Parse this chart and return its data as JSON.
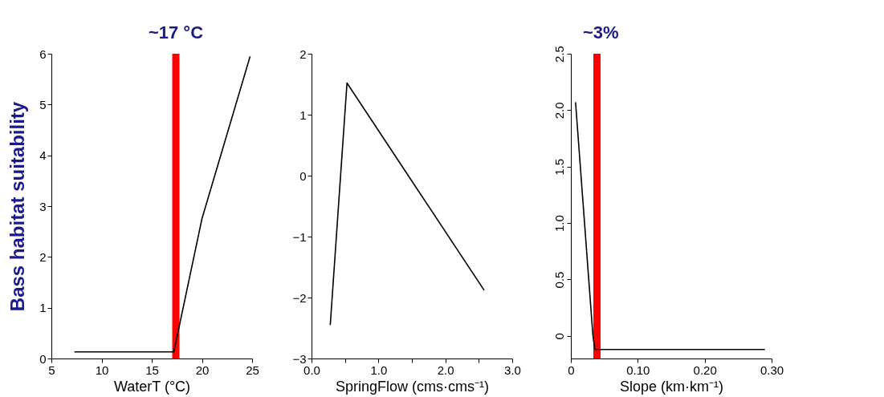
{
  "chart_data": [
    {
      "type": "line",
      "xlabel": "WaterT (°C)",
      "ylabel": "Bass habitat suitability",
      "xlim": [
        5,
        25
      ],
      "xticks": [
        5,
        10,
        15,
        20,
        25
      ],
      "ylim": [
        0,
        6
      ],
      "yticks": [
        0,
        1,
        2,
        3,
        4,
        5,
        6
      ],
      "x": [
        7.3,
        17.2,
        20,
        24.8
      ],
      "series": [
        {
          "color": "#000000",
          "values": [
            0.13,
            0.13,
            2.75,
            5.95
          ]
        }
      ],
      "ref_lines": [
        {
          "axis": "x",
          "value": 17.4,
          "label": "~17 °C",
          "color": "#ff0000"
        }
      ]
    },
    {
      "type": "line",
      "xlabel": "SpringFlow (cms·cms⁻¹)",
      "xlim": [
        0,
        3
      ],
      "xticks": [
        {
          "value": 0,
          "label": "0.0"
        },
        {
          "value": 0.5,
          "label": null
        },
        {
          "value": 1,
          "label": "1.0"
        },
        {
          "value": 1.5,
          "label": null
        },
        {
          "value": 2,
          "label": "2.0"
        },
        {
          "value": 2.5,
          "label": null
        },
        {
          "value": 3,
          "label": "3.0"
        }
      ],
      "ylim": [
        -3,
        2
      ],
      "yticks": [
        -3,
        -2,
        -1,
        0,
        1,
        2
      ],
      "x": [
        0.28,
        0.53,
        2.58
      ],
      "series": [
        {
          "color": "#000000",
          "values": [
            -2.45,
            1.52,
            -1.88
          ]
        }
      ]
    },
    {
      "type": "line",
      "xlabel": "Slope (km·km⁻¹)",
      "xlim": [
        0,
        0.3
      ],
      "xticks": [
        0,
        {
          "value": 0.1,
          "label": "0.10"
        },
        {
          "value": 0.2,
          "label": "0.20"
        },
        {
          "value": 0.3,
          "label": "0.30"
        }
      ],
      "ylim": [
        -0.2,
        2.5
      ],
      "yticks": [
        0,
        0.5,
        {
          "value": 1,
          "label": "1.0"
        },
        1.5,
        {
          "value": 2,
          "label": "2.0"
        },
        2.5
      ],
      "x": [
        0.007,
        0.033,
        0.036,
        0.29
      ],
      "series": [
        {
          "color": "#000000",
          "values": [
            2.07,
            0.0,
            -0.12,
            -0.12
          ]
        }
      ],
      "annotations": [
        "~3%"
      ],
      "ref_lines": [
        {
          "axis": "x",
          "value": 0.039,
          "color": "#ff0000"
        }
      ]
    }
  ]
}
